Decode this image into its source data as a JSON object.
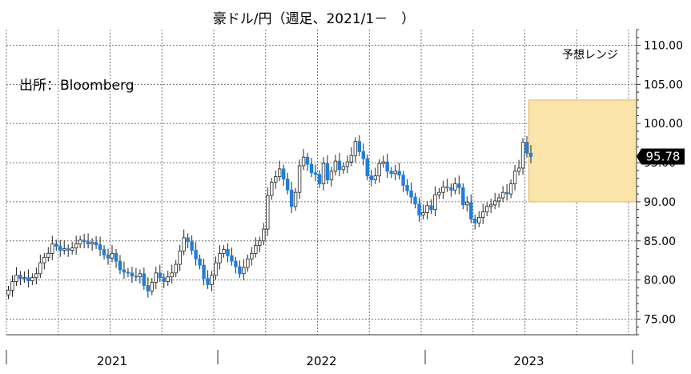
{
  "chart_data": {
    "type": "candlestick",
    "title": "豪ドル/円（週足、2021/1－　）",
    "source_note": "出所：Bloomberg",
    "forecast_label": "予想レンジ",
    "y_ticks": [
      "110.00",
      "105.00",
      "100.00",
      "95.00",
      "90.00",
      "85.00",
      "80.00",
      "75.00"
    ],
    "y_tick_values": [
      110,
      105,
      100,
      95,
      90,
      85,
      80,
      75
    ],
    "ylim": [
      73,
      112
    ],
    "x_labels": [
      "2021",
      "2022",
      "2023"
    ],
    "x_range_weeks": [
      0,
      158
    ],
    "year_boundaries_weeks": [
      53,
      105,
      157
    ],
    "current_price": "95.78",
    "current_price_value": 95.78,
    "forecast_range": {
      "low": 90.0,
      "high": 103.0,
      "start_week": 131,
      "end_week": 158
    },
    "colors": {
      "up": "#ffffff",
      "down": "#1f7ee0",
      "forecast_fill": "#fbe4a9",
      "forecast_border": "#e0b55a",
      "badge": "#000000"
    },
    "weekly_closes": [
      78.7,
      79.8,
      80.6,
      80.2,
      80.3,
      79.9,
      80.3,
      80.8,
      82.2,
      82.9,
      83.4,
      84.6,
      84.3,
      83.8,
      84.0,
      83.8,
      84.1,
      84.6,
      85.1,
      84.9,
      84.6,
      84.8,
      84.5,
      83.9,
      83.2,
      82.8,
      83.4,
      82.4,
      81.3,
      81.0,
      80.9,
      80.5,
      80.4,
      80.8,
      79.3,
      78.6,
      79.7,
      80.9,
      80.3,
      79.8,
      80.4,
      80.9,
      82.0,
      83.7,
      85.4,
      84.9,
      83.8,
      82.7,
      81.9,
      80.2,
      79.4,
      80.6,
      82.2,
      83.4,
      83.9,
      83.1,
      82.4,
      81.7,
      80.8,
      81.6,
      82.7,
      83.4,
      84.4,
      85.0,
      86.5,
      90.8,
      92.5,
      93.2,
      94.2,
      92.9,
      91.5,
      89.4,
      91.2,
      94.6,
      95.7,
      94.8,
      93.7,
      93.5,
      92.3,
      94.9,
      92.8,
      93.9,
      95.2,
      94.1,
      94.5,
      95.1,
      95.9,
      97.7,
      96.4,
      95.5,
      93.3,
      92.8,
      93.3,
      94.9,
      95.1,
      93.9,
      93.6,
      93.9,
      93.4,
      92.1,
      91.4,
      90.6,
      89.7,
      88.3,
      88.6,
      89.5,
      89.0,
      90.9,
      91.2,
      91.9,
      91.8,
      91.5,
      92.3,
      91.8,
      89.6,
      89.9,
      87.8,
      87.3,
      88.0,
      88.7,
      89.4,
      89.6,
      90.1,
      90.5,
      91.2,
      91.0,
      92.3,
      93.9,
      94.3,
      97.6,
      96.2,
      95.78
    ]
  }
}
